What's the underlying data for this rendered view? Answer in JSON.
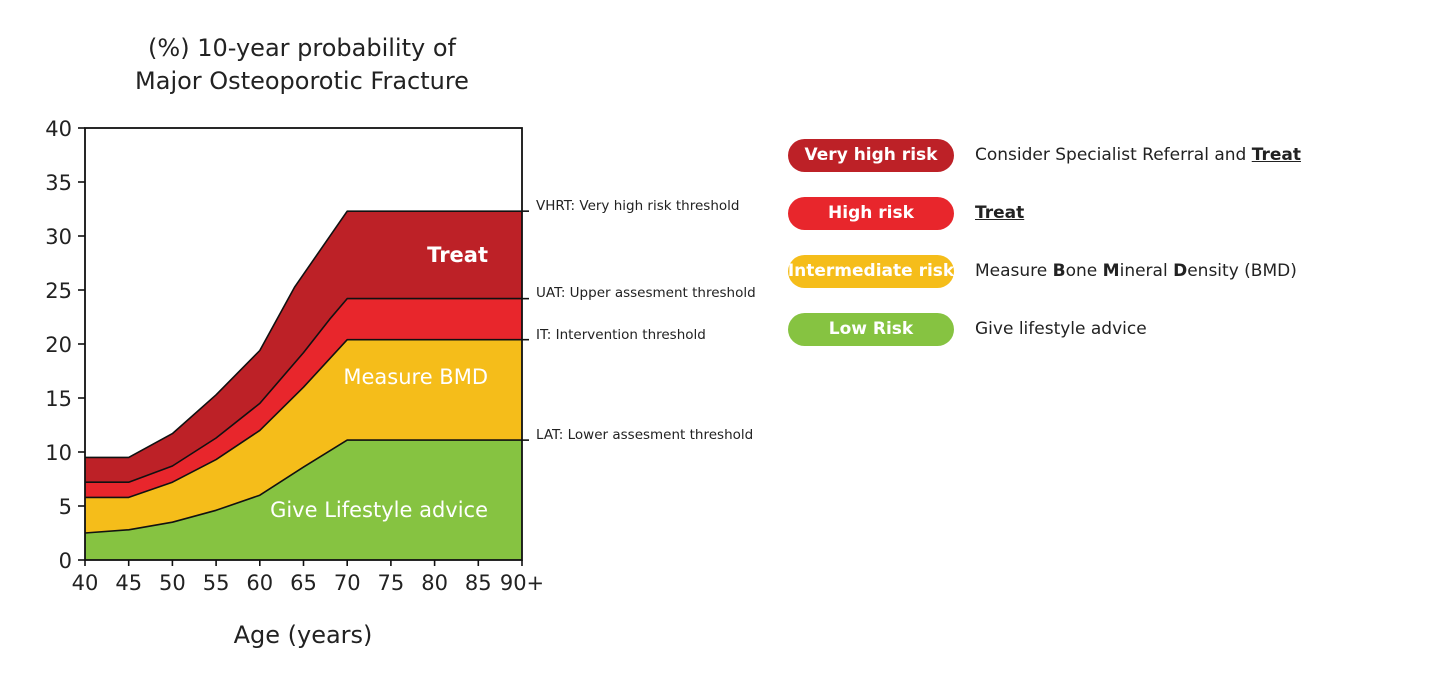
{
  "chart_data": {
    "type": "area",
    "title_line1": "(%) 10-year probability of",
    "title_line2": "Major Osteoporotic Fracture",
    "xlabel": "Age (years)",
    "ylabel": "",
    "x": [
      40,
      45,
      50,
      55,
      60,
      65,
      70,
      75,
      80,
      85,
      90
    ],
    "x_tick_labels": [
      "40",
      "45",
      "50",
      "55",
      "60",
      "65",
      "70",
      "75",
      "80",
      "85",
      "90+"
    ],
    "ylim": [
      0,
      40
    ],
    "y_ticks": [
      0,
      5,
      10,
      15,
      20,
      25,
      30,
      35,
      40
    ],
    "xlim": [
      40,
      90
    ],
    "thresholds": [
      {
        "name": "LAT",
        "label": "LAT: Lower assesment  threshold",
        "points": [
          [
            40,
            2.5
          ],
          [
            45,
            2.8
          ],
          [
            50,
            3.5
          ],
          [
            55,
            4.6
          ],
          [
            60,
            6.0
          ],
          [
            65,
            8.6
          ],
          [
            70,
            11.1
          ],
          [
            90,
            11.1
          ]
        ]
      },
      {
        "name": "IT",
        "label": "IT: Intervention  threshold",
        "points": [
          [
            40,
            5.8
          ],
          [
            45,
            5.8
          ],
          [
            50,
            7.2
          ],
          [
            55,
            9.3
          ],
          [
            60,
            12.0
          ],
          [
            65,
            16.0
          ],
          [
            70,
            20.4
          ],
          [
            90,
            20.4
          ]
        ]
      },
      {
        "name": "UAT",
        "label": "UAT: Upper assesment  threshold",
        "points": [
          [
            40,
            7.2
          ],
          [
            45,
            7.2
          ],
          [
            50,
            8.7
          ],
          [
            55,
            11.3
          ],
          [
            60,
            14.5
          ],
          [
            65,
            19.2
          ],
          [
            68,
            22.3
          ],
          [
            70,
            24.2
          ],
          [
            90,
            24.2
          ]
        ]
      },
      {
        "name": "VHRT",
        "label": "VHRT: Very high risk threshold",
        "points": [
          [
            40,
            9.5
          ],
          [
            45,
            9.5
          ],
          [
            50,
            11.7
          ],
          [
            55,
            15.3
          ],
          [
            60,
            19.4
          ],
          [
            64,
            25.3
          ],
          [
            70,
            32.3
          ],
          [
            90,
            32.3
          ]
        ]
      }
    ],
    "regions": [
      {
        "key": "low",
        "color": "#86c341",
        "label": "Give Lifestyle advice",
        "bold": ""
      },
      {
        "key": "intermediate",
        "color": "#f5bd1a",
        "label": "Measure BMD",
        "bold": ""
      },
      {
        "key": "high",
        "color": "#e8262c",
        "label": "",
        "bold": "Treat"
      },
      {
        "key": "veryhigh",
        "color": "#bd2127",
        "label": "Consider Specialist Referral and ",
        "bold": "Treat"
      }
    ],
    "legend": [
      {
        "pill": "Very high risk",
        "color": "#bd2127",
        "desc_parts": [
          {
            "t": "Consider Specialist Referral and ",
            "s": "n"
          },
          {
            "t": "Treat",
            "s": "u"
          }
        ]
      },
      {
        "pill": "High risk",
        "color": "#e8262c",
        "desc_parts": [
          {
            "t": "Treat",
            "s": "u"
          }
        ]
      },
      {
        "pill": "Intermediate risk",
        "color": "#f5bd1a",
        "desc_parts": [
          {
            "t": "Measure ",
            "s": "n"
          },
          {
            "t": "B",
            "s": "b"
          },
          {
            "t": "one ",
            "s": "n"
          },
          {
            "t": "M",
            "s": "b"
          },
          {
            "t": "ineral ",
            "s": "n"
          },
          {
            "t": "D",
            "s": "b"
          },
          {
            "t": "ensity (BMD)",
            "s": "n"
          }
        ]
      },
      {
        "pill": "Low Risk",
        "color": "#86c341",
        "desc_parts": [
          {
            "t": "Give lifestyle advice",
            "s": "n"
          }
        ]
      }
    ]
  }
}
